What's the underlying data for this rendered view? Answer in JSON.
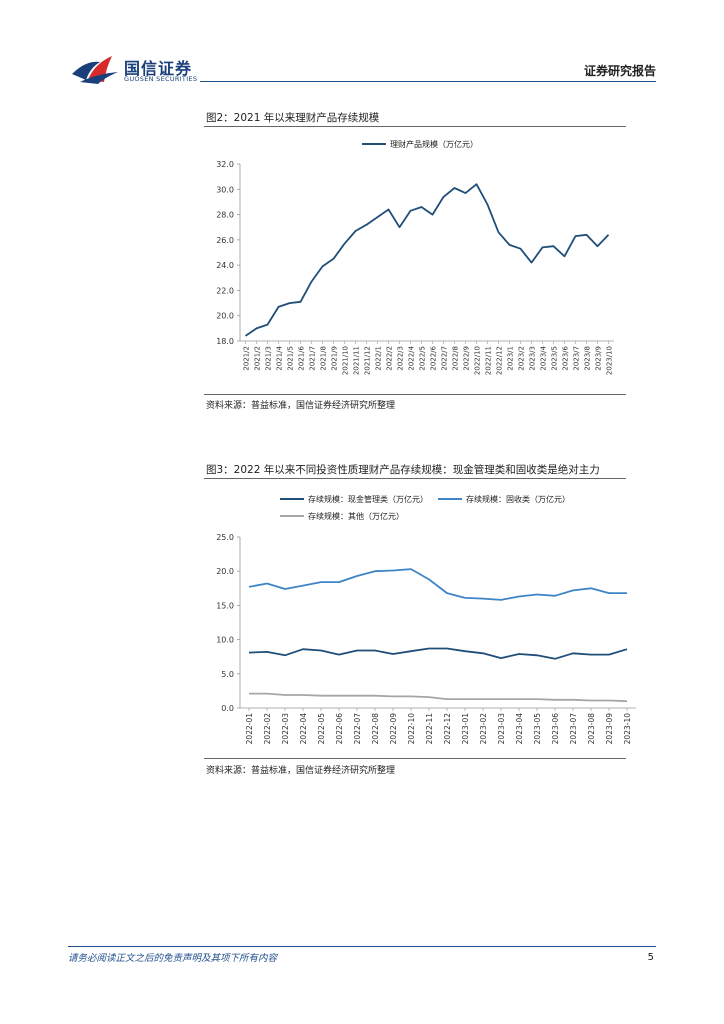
{
  "header": {
    "logo_cn": "国信证券",
    "logo_en": "GUOSEN SECURITIES",
    "report_type": "证券研究报告"
  },
  "figures": [
    {
      "title": "图2：2021 年以来理财产品存续规模",
      "source": "资料来源：普益标准，国信证券经济研究所整理"
    },
    {
      "title": "图3：2022 年以来不同投资性质理财产品存续规模：现金管理类和固收类是绝对主力",
      "source": "资料来源：普益标准，国信证券经济研究所整理"
    }
  ],
  "footer": {
    "disclaimer": "请务必阅读正文之后的免责声明及其项下所有内容",
    "page": "5"
  },
  "chart_data": [
    {
      "type": "line",
      "title": "",
      "legend_position": "top",
      "ylim": [
        18.0,
        32.0
      ],
      "yticks": [
        "18.0",
        "20.0",
        "22.0",
        "24.0",
        "26.0",
        "28.0",
        "30.0",
        "32.0"
      ],
      "categories": [
        "2021/2",
        "2021/2",
        "2021/3",
        "2021/4",
        "2021/5",
        "2021/6",
        "2021/7",
        "2021/8",
        "2021/9",
        "2021/10",
        "2021/11",
        "2021/12",
        "2022/1",
        "2022/2",
        "2022/3",
        "2022/4",
        "2022/5",
        "2022/6",
        "2022/7",
        "2022/8",
        "2022/9",
        "2022/10",
        "2022/11",
        "2022/12",
        "2023/1",
        "2023/2",
        "2023/3",
        "2023/4",
        "2023/5",
        "2023/6",
        "2023/7",
        "2023/8",
        "2023/9",
        "2023/10"
      ],
      "series": [
        {
          "name": "理财产品规模（万亿元）",
          "color": "#1f4e79",
          "values": [
            18.4,
            19.0,
            19.3,
            20.7,
            21.0,
            21.1,
            22.7,
            23.9,
            24.5,
            25.7,
            26.7,
            27.2,
            27.8,
            28.4,
            27.0,
            28.3,
            28.6,
            28.0,
            29.4,
            30.1,
            29.7,
            30.4,
            28.8,
            26.6,
            25.6,
            25.3,
            24.2,
            25.4,
            25.5,
            24.7,
            26.3,
            26.4,
            25.5,
            26.4
          ]
        }
      ]
    },
    {
      "type": "line",
      "title": "",
      "legend_position": "top",
      "ylim": [
        0.0,
        25.0
      ],
      "yticks": [
        "0.0",
        "5.0",
        "10.0",
        "15.0",
        "20.0",
        "25.0"
      ],
      "categories": [
        "2022-01",
        "2022-02",
        "2022-03",
        "2022-04",
        "2022-05",
        "2022-06",
        "2022-07",
        "2022-08",
        "2022-09",
        "2022-10",
        "2022-11",
        "2022-12",
        "2023-01",
        "2023-02",
        "2023-03",
        "2023-04",
        "2023-05",
        "2023-06",
        "2023-07",
        "2023-08",
        "2023-09",
        "2023-10"
      ],
      "series": [
        {
          "name": "存续规模：现金管理类（万亿元）",
          "color": "#1f4e79",
          "values": [
            8.1,
            8.2,
            7.7,
            8.6,
            8.4,
            7.8,
            8.4,
            8.4,
            7.9,
            8.3,
            8.7,
            8.7,
            8.3,
            8.0,
            7.3,
            7.9,
            7.7,
            7.2,
            8.0,
            7.8,
            7.8,
            8.6
          ]
        },
        {
          "name": "存续规模：固收类（万亿元）",
          "color": "#3d85c6",
          "values": [
            17.7,
            18.2,
            17.4,
            17.9,
            18.4,
            18.4,
            19.3,
            20.0,
            20.1,
            20.3,
            18.8,
            16.8,
            16.1,
            16.0,
            15.8,
            16.3,
            16.6,
            16.4,
            17.2,
            17.5,
            16.8,
            16.8
          ]
        },
        {
          "name": "存续规模：其他（万亿元）",
          "color": "#a6a6a6",
          "values": [
            2.1,
            2.1,
            1.9,
            1.9,
            1.8,
            1.8,
            1.8,
            1.8,
            1.7,
            1.7,
            1.6,
            1.3,
            1.3,
            1.3,
            1.3,
            1.3,
            1.3,
            1.2,
            1.2,
            1.1,
            1.1,
            1.0
          ]
        }
      ]
    }
  ]
}
